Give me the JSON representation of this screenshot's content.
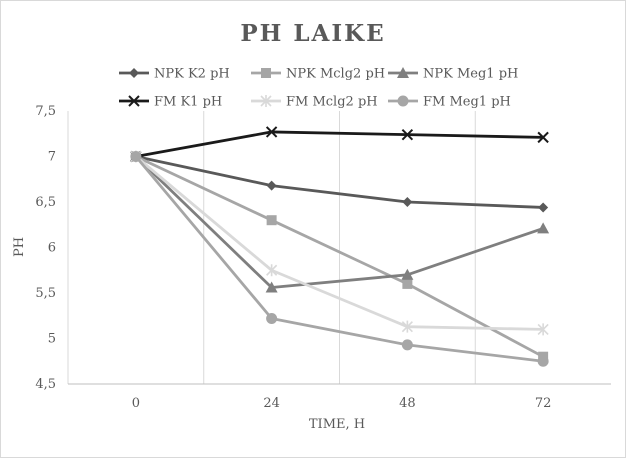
{
  "chart_data": {
    "type": "line",
    "title": "PH LAIKE",
    "xlabel": "TIME, H",
    "ylabel": "PH",
    "categories": [
      "0",
      "24",
      "48",
      "72"
    ],
    "ylim": [
      4.5,
      7.5
    ],
    "yticks": [
      "4,5",
      "5",
      "5,5",
      "6",
      "6,5",
      "7",
      "7,5"
    ],
    "ytick_values": [
      4.5,
      5,
      5.5,
      6,
      6.5,
      7,
      7.5
    ],
    "grid": "vertical",
    "legend_position": "top",
    "series": [
      {
        "name": "NPK K2 pH",
        "values": [
          7.0,
          6.68,
          6.5,
          6.44
        ],
        "color": "#595959",
        "marker": "diamond"
      },
      {
        "name": "NPK Mclg2 pH",
        "values": [
          7.0,
          6.3,
          5.6,
          4.8
        ],
        "color": "#a6a6a6",
        "marker": "square"
      },
      {
        "name": "NPK Meg1 pH",
        "values": [
          7.0,
          5.56,
          5.7,
          6.21
        ],
        "color": "#7f7f7f",
        "marker": "triangle"
      },
      {
        "name": "FM K1 pH",
        "values": [
          7.0,
          7.27,
          7.24,
          7.21
        ],
        "color": "#1a1a1a",
        "marker": "x"
      },
      {
        "name": "FM Mclg2 pH",
        "values": [
          7.0,
          5.75,
          5.13,
          5.1
        ],
        "color": "#d9d9d9",
        "marker": "star"
      },
      {
        "name": "FM Meg1 pH",
        "values": [
          7.0,
          5.22,
          4.93,
          4.75
        ],
        "color": "#a6a6a6",
        "marker": "circle"
      }
    ]
  }
}
